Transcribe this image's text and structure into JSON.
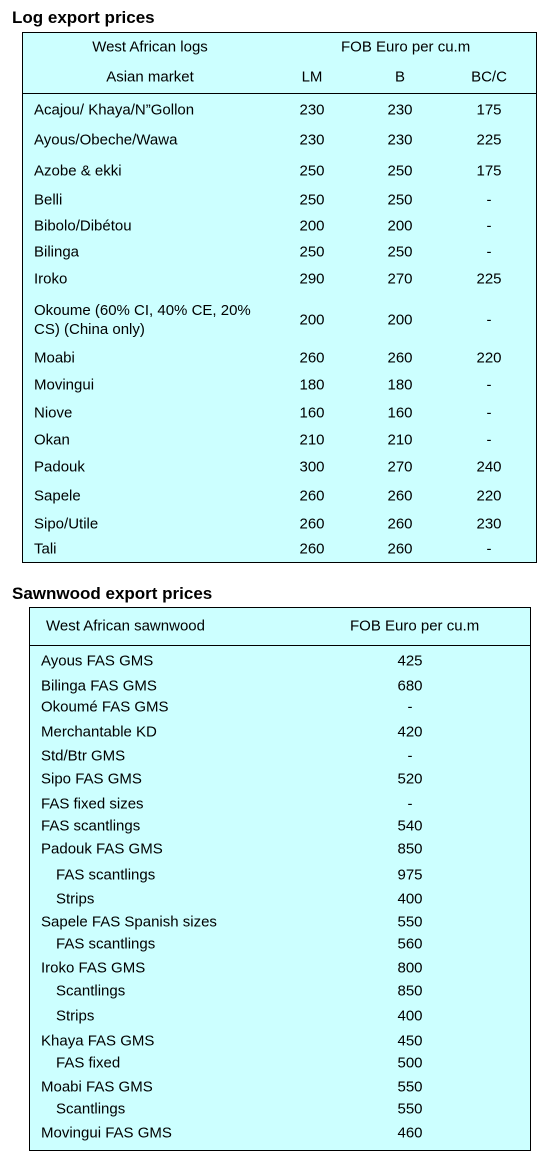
{
  "log_table": {
    "title": "Log export prices",
    "header": [
      "West African logs",
      "FOB Euro per cu.m"
    ],
    "subheader": [
      "Asian market",
      "LM",
      "B",
      "BC/C"
    ],
    "rows": [
      [
        "Acajou/ Khaya/N”Gollon",
        "230",
        "230",
        "175"
      ],
      [
        "Ayous/Obeche/Wawa",
        "230",
        "230",
        "225"
      ],
      [
        "Azobe & ekki",
        "250",
        "250",
        "175"
      ],
      [
        "Belli",
        "250",
        "250",
        "-"
      ],
      [
        "Bibolo/Dibétou",
        "200",
        "200",
        "-"
      ],
      [
        "Bilinga",
        "250",
        "250",
        "-"
      ],
      [
        "Iroko",
        "290",
        "270",
        "225"
      ],
      [
        "Okoume (60% CI, 40% CE, 20% CS) (China only)",
        "200",
        "200",
        "-"
      ],
      [
        "Moabi",
        "260",
        "260",
        "220"
      ],
      [
        "Movingui",
        "180",
        "180",
        "-"
      ],
      [
        "Niove",
        "160",
        "160",
        "-"
      ],
      [
        "Okan",
        "210",
        "210",
        "-"
      ],
      [
        "Padouk",
        "300",
        "270",
        "240"
      ],
      [
        "Sapele",
        "260",
        "260",
        "220"
      ],
      [
        "Sipo/Utile",
        "260",
        "260",
        "230"
      ],
      [
        "Tali",
        "260",
        "260",
        "-"
      ]
    ]
  },
  "sawnwood_table": {
    "title": "Sawnwood export prices",
    "header": [
      "West African sawnwood",
      "FOB Euro per cu.m"
    ],
    "rows": [
      [
        "Ayous FAS GMS",
        "425"
      ],
      [
        "Bilinga FAS GMS",
        "680"
      ],
      [
        "Okoumé FAS GMS",
        "-"
      ],
      [
        "Merchantable KD",
        "420"
      ],
      [
        "Std/Btr GMS",
        "-"
      ],
      [
        "Sipo FAS GMS",
        "520"
      ],
      [
        "FAS fixed sizes",
        "-"
      ],
      [
        "FAS scantlings",
        "540"
      ],
      [
        "Padouk FAS GMS",
        "850"
      ],
      [
        "FAS scantlings",
        "975"
      ],
      [
        "Strips",
        "400"
      ],
      [
        "Sapele FAS Spanish sizes",
        "550"
      ],
      [
        "FAS scantlings",
        "560"
      ],
      [
        "Iroko FAS GMS",
        "800"
      ],
      [
        "Scantlings",
        "850"
      ],
      [
        "Strips",
        "400"
      ],
      [
        "Khaya FAS GMS",
        "450"
      ],
      [
        "FAS fixed",
        "500"
      ],
      [
        "Moabi FAS GMS",
        "550"
      ],
      [
        "Scantlings",
        "550"
      ],
      [
        "Movingui FAS GMS",
        "460"
      ]
    ]
  }
}
